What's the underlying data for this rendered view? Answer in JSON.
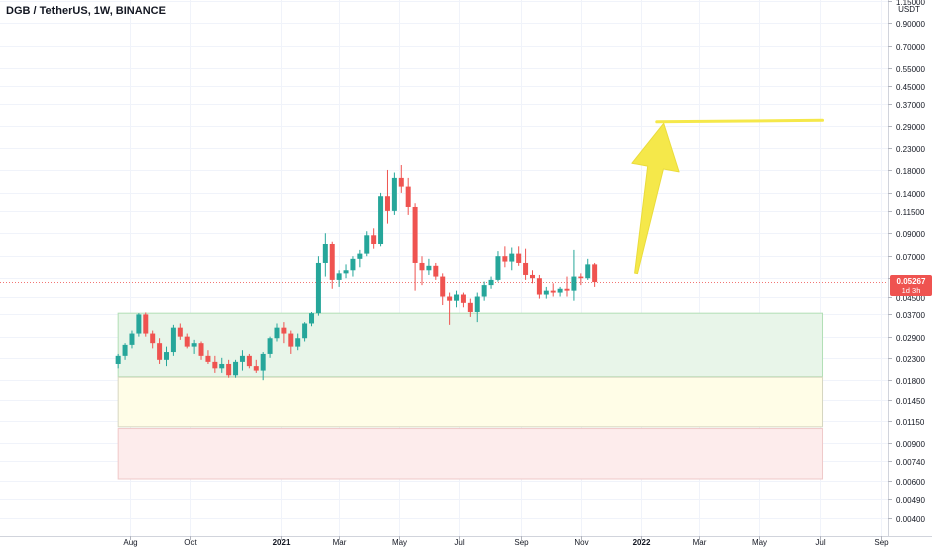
{
  "header": {
    "symbol_title": "DGB / TetherUS, 1W, BINANCE"
  },
  "chart_data": {
    "type": "candlestick",
    "title": "DGB / TetherUS, 1W, BINANCE",
    "y_scale": "log",
    "y_unit_label": "USDT",
    "y_ticks": [
      "1.15000",
      "0.90000",
      "0.70000",
      "0.55000",
      "0.45000",
      "0.37000",
      "0.29000",
      "0.23000",
      "0.18000",
      "0.14000",
      "0.11500",
      "0.09000",
      "0.07000",
      "0.05500",
      "0.04500",
      "0.03700",
      "0.02900",
      "0.02300",
      "0.01800",
      "0.01450",
      "0.01150",
      "0.00900",
      "0.00740",
      "0.00600",
      "0.00490",
      "0.00400"
    ],
    "y_tick_values": [
      1.15,
      0.9,
      0.7,
      0.55,
      0.45,
      0.37,
      0.29,
      0.23,
      0.18,
      0.14,
      0.115,
      0.09,
      0.07,
      0.055,
      0.045,
      0.037,
      0.029,
      0.023,
      0.018,
      0.0145,
      0.0115,
      0.009,
      0.0074,
      0.006,
      0.0049,
      0.004
    ],
    "x_ticks": [
      "Aug",
      "Oct",
      "2021",
      "Mar",
      "May",
      "Jul",
      "Sep",
      "Nov",
      "2022",
      "Mar",
      "May",
      "Jul",
      "Sep"
    ],
    "x_tick_dates": [
      "2020-08-01",
      "2020-10-01",
      "2021-01-01",
      "2021-03-01",
      "2021-05-01",
      "2021-07-01",
      "2021-09-01",
      "2021-11-01",
      "2022-01-01",
      "2022-03-01",
      "2022-05-01",
      "2022-07-01",
      "2022-09-01"
    ],
    "current_price": {
      "value": 0.05267,
      "label": "0.05267",
      "countdown": "1d 3h"
    },
    "colors": {
      "up": "#26a69a",
      "down": "#ef5350",
      "arrow": "#f5e84a",
      "target_line": "#f5e84a",
      "price_line": "#ef5350"
    },
    "zones": [
      {
        "name": "green-zone",
        "from_date": "2020-07-20",
        "to_date": "2022-07-04",
        "low": 0.0187,
        "high": 0.0375,
        "fill": "#e8f5e9",
        "border": "#b2dfb5"
      },
      {
        "name": "yellow-zone",
        "from_date": "2020-07-20",
        "to_date": "2022-07-04",
        "low": 0.0108,
        "high": 0.0186,
        "fill": "#fffde7",
        "border": "#d6d6c0"
      },
      {
        "name": "red-zone",
        "from_date": "2020-07-20",
        "to_date": "2022-07-04",
        "low": 0.0061,
        "high": 0.0106,
        "fill": "#fdecec",
        "border": "#efc9c9"
      }
    ],
    "drawings": {
      "target_line": {
        "from_date": "2022-01-17",
        "to_date": "2022-07-04",
        "price": 0.305
      },
      "arrow": {
        "from_date": "2021-12-27",
        "from_price": 0.058,
        "to_date": "2022-01-24",
        "to_price": 0.3
      }
    },
    "candles": [
      {
        "date": "2020-07-20",
        "open": 0.0215,
        "high": 0.024,
        "low": 0.0205,
        "close": 0.0235
      },
      {
        "date": "2020-07-27",
        "open": 0.0235,
        "high": 0.027,
        "low": 0.0225,
        "close": 0.0265
      },
      {
        "date": "2020-08-03",
        "open": 0.0265,
        "high": 0.031,
        "low": 0.0255,
        "close": 0.03
      },
      {
        "date": "2020-08-10",
        "open": 0.03,
        "high": 0.0375,
        "low": 0.029,
        "close": 0.037
      },
      {
        "date": "2020-08-17",
        "open": 0.037,
        "high": 0.0378,
        "low": 0.029,
        "close": 0.03
      },
      {
        "date": "2020-08-24",
        "open": 0.03,
        "high": 0.031,
        "low": 0.0255,
        "close": 0.027
      },
      {
        "date": "2020-08-31",
        "open": 0.027,
        "high": 0.0285,
        "low": 0.0215,
        "close": 0.0225
      },
      {
        "date": "2020-09-07",
        "open": 0.0225,
        "high": 0.026,
        "low": 0.021,
        "close": 0.0245
      },
      {
        "date": "2020-09-14",
        "open": 0.0245,
        "high": 0.033,
        "low": 0.0235,
        "close": 0.032
      },
      {
        "date": "2020-09-21",
        "open": 0.032,
        "high": 0.0335,
        "low": 0.028,
        "close": 0.029
      },
      {
        "date": "2020-09-28",
        "open": 0.029,
        "high": 0.03,
        "low": 0.0255,
        "close": 0.026
      },
      {
        "date": "2020-10-05",
        "open": 0.026,
        "high": 0.028,
        "low": 0.024,
        "close": 0.027
      },
      {
        "date": "2020-10-12",
        "open": 0.027,
        "high": 0.0275,
        "low": 0.0225,
        "close": 0.0235
      },
      {
        "date": "2020-10-19",
        "open": 0.0235,
        "high": 0.025,
        "low": 0.0215,
        "close": 0.022
      },
      {
        "date": "2020-10-26",
        "open": 0.022,
        "high": 0.0235,
        "low": 0.0195,
        "close": 0.0205
      },
      {
        "date": "2020-11-02",
        "open": 0.0205,
        "high": 0.023,
        "low": 0.0195,
        "close": 0.0215
      },
      {
        "date": "2020-11-09",
        "open": 0.0215,
        "high": 0.0225,
        "low": 0.0185,
        "close": 0.019
      },
      {
        "date": "2020-11-16",
        "open": 0.019,
        "high": 0.0225,
        "low": 0.0185,
        "close": 0.022
      },
      {
        "date": "2020-11-23",
        "open": 0.022,
        "high": 0.025,
        "low": 0.02,
        "close": 0.0235
      },
      {
        "date": "2020-11-30",
        "open": 0.0235,
        "high": 0.024,
        "low": 0.0205,
        "close": 0.021
      },
      {
        "date": "2020-12-07",
        "open": 0.021,
        "high": 0.0225,
        "low": 0.0195,
        "close": 0.02
      },
      {
        "date": "2020-12-14",
        "open": 0.02,
        "high": 0.0245,
        "low": 0.018,
        "close": 0.024
      },
      {
        "date": "2020-12-21",
        "open": 0.024,
        "high": 0.029,
        "low": 0.023,
        "close": 0.0285
      },
      {
        "date": "2020-12-28",
        "open": 0.0285,
        "high": 0.0335,
        "low": 0.0275,
        "close": 0.032
      },
      {
        "date": "2021-01-04",
        "open": 0.032,
        "high": 0.034,
        "low": 0.027,
        "close": 0.03
      },
      {
        "date": "2021-01-11",
        "open": 0.03,
        "high": 0.031,
        "low": 0.024,
        "close": 0.026
      },
      {
        "date": "2021-01-18",
        "open": 0.026,
        "high": 0.03,
        "low": 0.025,
        "close": 0.0285
      },
      {
        "date": "2021-01-25",
        "open": 0.0285,
        "high": 0.034,
        "low": 0.0275,
        "close": 0.0335
      },
      {
        "date": "2021-02-01",
        "open": 0.0335,
        "high": 0.038,
        "low": 0.0325,
        "close": 0.0375
      },
      {
        "date": "2021-02-08",
        "open": 0.0375,
        "high": 0.07,
        "low": 0.0365,
        "close": 0.065
      },
      {
        "date": "2021-02-15",
        "open": 0.065,
        "high": 0.09,
        "low": 0.056,
        "close": 0.08
      },
      {
        "date": "2021-02-22",
        "open": 0.08,
        "high": 0.082,
        "low": 0.049,
        "close": 0.054
      },
      {
        "date": "2021-03-01",
        "open": 0.054,
        "high": 0.06,
        "low": 0.05,
        "close": 0.058
      },
      {
        "date": "2021-03-08",
        "open": 0.058,
        "high": 0.064,
        "low": 0.055,
        "close": 0.06
      },
      {
        "date": "2021-03-15",
        "open": 0.06,
        "high": 0.07,
        "low": 0.056,
        "close": 0.068
      },
      {
        "date": "2021-03-22",
        "open": 0.068,
        "high": 0.075,
        "low": 0.062,
        "close": 0.072
      },
      {
        "date": "2021-03-29",
        "open": 0.072,
        "high": 0.092,
        "low": 0.07,
        "close": 0.088
      },
      {
        "date": "2021-04-05",
        "open": 0.088,
        "high": 0.095,
        "low": 0.076,
        "close": 0.08
      },
      {
        "date": "2021-04-12",
        "open": 0.08,
        "high": 0.14,
        "low": 0.078,
        "close": 0.135
      },
      {
        "date": "2021-04-19",
        "open": 0.135,
        "high": 0.18,
        "low": 0.1,
        "close": 0.115
      },
      {
        "date": "2021-04-26",
        "open": 0.115,
        "high": 0.175,
        "low": 0.11,
        "close": 0.165
      },
      {
        "date": "2021-05-03",
        "open": 0.165,
        "high": 0.19,
        "low": 0.14,
        "close": 0.15
      },
      {
        "date": "2021-05-10",
        "open": 0.15,
        "high": 0.165,
        "low": 0.11,
        "close": 0.12
      },
      {
        "date": "2021-05-17",
        "open": 0.12,
        "high": 0.125,
        "low": 0.048,
        "close": 0.065
      },
      {
        "date": "2021-05-24",
        "open": 0.065,
        "high": 0.07,
        "low": 0.051,
        "close": 0.06
      },
      {
        "date": "2021-05-31",
        "open": 0.06,
        "high": 0.068,
        "low": 0.057,
        "close": 0.063
      },
      {
        "date": "2021-06-07",
        "open": 0.063,
        "high": 0.065,
        "low": 0.054,
        "close": 0.056
      },
      {
        "date": "2021-06-14",
        "open": 0.056,
        "high": 0.058,
        "low": 0.041,
        "close": 0.045
      },
      {
        "date": "2021-06-21",
        "open": 0.045,
        "high": 0.047,
        "low": 0.033,
        "close": 0.043
      },
      {
        "date": "2021-06-28",
        "open": 0.043,
        "high": 0.048,
        "low": 0.04,
        "close": 0.046
      },
      {
        "date": "2021-07-05",
        "open": 0.046,
        "high": 0.047,
        "low": 0.04,
        "close": 0.042
      },
      {
        "date": "2021-07-12",
        "open": 0.042,
        "high": 0.044,
        "low": 0.036,
        "close": 0.038
      },
      {
        "date": "2021-07-19",
        "open": 0.038,
        "high": 0.047,
        "low": 0.034,
        "close": 0.045
      },
      {
        "date": "2021-07-26",
        "open": 0.045,
        "high": 0.053,
        "low": 0.043,
        "close": 0.051
      },
      {
        "date": "2021-08-02",
        "open": 0.051,
        "high": 0.056,
        "low": 0.049,
        "close": 0.054
      },
      {
        "date": "2021-08-09",
        "open": 0.054,
        "high": 0.074,
        "low": 0.053,
        "close": 0.07
      },
      {
        "date": "2021-08-16",
        "open": 0.07,
        "high": 0.078,
        "low": 0.062,
        "close": 0.066
      },
      {
        "date": "2021-08-23",
        "open": 0.066,
        "high": 0.077,
        "low": 0.06,
        "close": 0.072
      },
      {
        "date": "2021-08-30",
        "open": 0.072,
        "high": 0.078,
        "low": 0.063,
        "close": 0.065
      },
      {
        "date": "2021-09-06",
        "open": 0.065,
        "high": 0.076,
        "low": 0.054,
        "close": 0.057
      },
      {
        "date": "2021-09-13",
        "open": 0.057,
        "high": 0.06,
        "low": 0.052,
        "close": 0.055
      },
      {
        "date": "2021-09-20",
        "open": 0.055,
        "high": 0.057,
        "low": 0.044,
        "close": 0.046
      },
      {
        "date": "2021-09-27",
        "open": 0.046,
        "high": 0.05,
        "low": 0.044,
        "close": 0.048
      },
      {
        "date": "2021-10-04",
        "open": 0.048,
        "high": 0.052,
        "low": 0.045,
        "close": 0.047
      },
      {
        "date": "2021-10-11",
        "open": 0.047,
        "high": 0.05,
        "low": 0.045,
        "close": 0.049
      },
      {
        "date": "2021-10-18",
        "open": 0.049,
        "high": 0.056,
        "low": 0.045,
        "close": 0.048
      },
      {
        "date": "2021-10-25",
        "open": 0.048,
        "high": 0.075,
        "low": 0.043,
        "close": 0.056
      },
      {
        "date": "2021-11-01",
        "open": 0.056,
        "high": 0.058,
        "low": 0.051,
        "close": 0.055
      },
      {
        "date": "2021-11-08",
        "open": 0.055,
        "high": 0.068,
        "low": 0.054,
        "close": 0.064
      },
      {
        "date": "2021-11-15",
        "open": 0.064,
        "high": 0.065,
        "low": 0.05,
        "close": 0.0527
      }
    ]
  }
}
